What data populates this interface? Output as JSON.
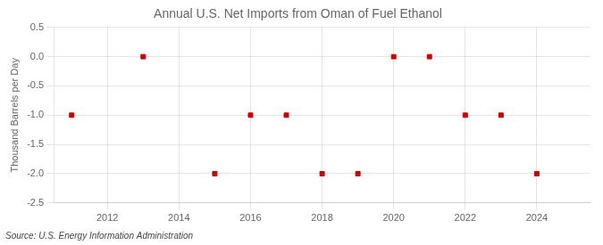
{
  "chart_data": {
    "type": "scatter",
    "title": "Annual U.S. Net Imports from Oman of Fuel Ethanol",
    "ylabel": "Thousand Barrels per Day",
    "annotations": [
      "Source: U.S. Energy Information Administration"
    ],
    "x": [
      2011,
      2013,
      2015,
      2016,
      2017,
      2018,
      2019,
      2020,
      2021,
      2022,
      2023,
      2024
    ],
    "values": [
      -1.0,
      0.0,
      -2.0,
      -1.0,
      -1.0,
      -2.0,
      -2.0,
      0.0,
      0.0,
      -1.0,
      -1.0,
      -2.0
    ],
    "color": "#cc0000",
    "marker": "square",
    "line_style": "none",
    "xlim": [
      2010.5,
      2025.5
    ],
    "xticks": [
      2012,
      2014,
      2016,
      2018,
      2020,
      2022,
      2024
    ],
    "ylim": [
      -2.5,
      0.5
    ],
    "yticks": [
      0.5,
      {
        "value": 0.0,
        "label": "0.0"
      },
      -0.5,
      {
        "value": -1.0,
        "label": "-1.0"
      },
      -1.5,
      {
        "value": -2.0,
        "label": "-2.0"
      },
      -2.5
    ],
    "grid": true
  }
}
